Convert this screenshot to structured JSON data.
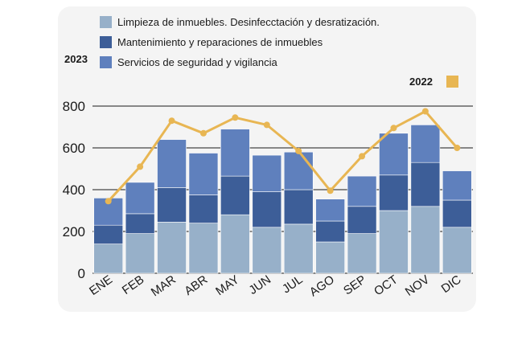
{
  "chart_data": {
    "type": "bar",
    "stacked": true,
    "title_left": "2023",
    "categories": [
      "ENE",
      "FEB",
      "MAR",
      "ABR",
      "MAY",
      "JUN",
      "JUL",
      "AGO",
      "SEP",
      "OCT",
      "NOV",
      "DIC"
    ],
    "series": [
      {
        "name": "Limpieza de inmuebles. Desinfecctación y desratización.",
        "color": "#97b0c9",
        "values": [
          140,
          190,
          245,
          240,
          280,
          220,
          235,
          150,
          190,
          300,
          320,
          220
        ]
      },
      {
        "name": "Mantenimiento y reparaciones de inmuebles",
        "color": "#3d5e98",
        "values": [
          90,
          95,
          165,
          135,
          185,
          170,
          165,
          100,
          130,
          170,
          210,
          130
        ]
      },
      {
        "name": "Servicios de seguridad y vigilancia",
        "color": "#5f80bd",
        "values": [
          130,
          150,
          230,
          200,
          225,
          175,
          180,
          105,
          145,
          200,
          180,
          140
        ]
      }
    ],
    "line": {
      "name": "2022",
      "color": "#e8b653",
      "values": [
        345,
        510,
        730,
        670,
        745,
        710,
        585,
        395,
        560,
        695,
        775,
        600
      ]
    },
    "y_axis": {
      "min": 0,
      "max": 800,
      "ticks": [
        "0",
        "200",
        "400",
        "600",
        "800"
      ]
    },
    "grid": true
  }
}
